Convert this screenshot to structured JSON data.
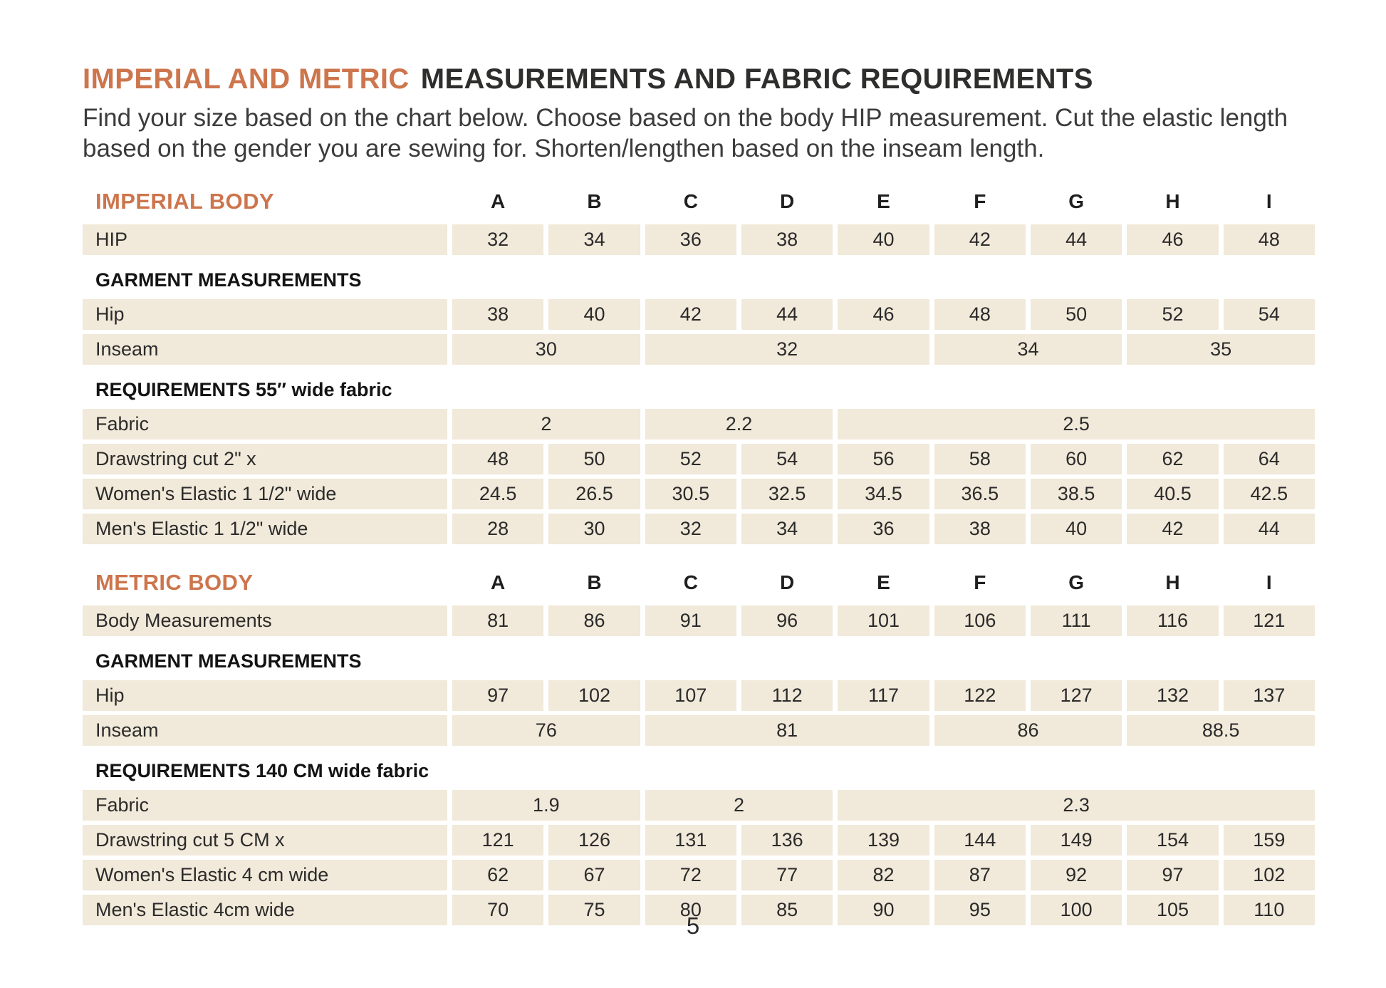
{
  "colors": {
    "accent": "#cd754d",
    "cell_bg": "#f1e9d9",
    "text": "#2b2b2b"
  },
  "page": {
    "title_accent": "IMPERIAL AND METRIC",
    "title_rest": "MEASUREMENTS AND FABRIC REQUIREMENTS",
    "subtitle_line1": "Find your size based on the chart below. Choose based on the body HIP measurement. Cut the elastic length",
    "subtitle_line2": "based on the gender you are sewing for. Shorten/lengthen based on the inseam length.",
    "page_number": "5"
  },
  "sizes": [
    "A",
    "B",
    "C",
    "D",
    "E",
    "F",
    "G",
    "H",
    "I"
  ],
  "imperial": {
    "heading": "IMPERIAL BODY",
    "hip_body": {
      "label": "HIP",
      "v": [
        "32",
        "34",
        "36",
        "38",
        "40",
        "42",
        "44",
        "46",
        "48"
      ]
    },
    "garment_heading": "GARMENT MEASUREMENTS",
    "hip": {
      "label": "Hip",
      "v": [
        "38",
        "40",
        "42",
        "44",
        "46",
        "48",
        "50",
        "52",
        "54"
      ]
    },
    "inseam": {
      "label": "Inseam",
      "v": [
        "30",
        "32",
        "34",
        "35"
      ]
    },
    "req_heading": "REQUIREMENTS 55″ wide fabric",
    "fabric": {
      "label": "Fabric",
      "v": [
        "2",
        "2.2",
        "2.5"
      ]
    },
    "drawstring": {
      "label": "Drawstring cut 2\" x",
      "v": [
        "48",
        "50",
        "52",
        "54",
        "56",
        "58",
        "60",
        "62",
        "64"
      ]
    },
    "womens": {
      "label": "Women's Elastic 1 1/2\" wide",
      "v": [
        "24.5",
        "26.5",
        "30.5",
        "32.5",
        "34.5",
        "36.5",
        "38.5",
        "40.5",
        "42.5"
      ]
    },
    "mens": {
      "label": "Men's Elastic 1 1/2\" wide",
      "v": [
        "28",
        "30",
        "32",
        "34",
        "36",
        "38",
        "40",
        "42",
        "44"
      ]
    }
  },
  "metric": {
    "heading": "METRIC BODY",
    "body_meas": {
      "label": "Body Measurements",
      "v": [
        "81",
        "86",
        "91",
        "96",
        "101",
        "106",
        "111",
        "116",
        "121"
      ]
    },
    "garment_heading": "GARMENT MEASUREMENTS",
    "hip": {
      "label": "Hip",
      "v": [
        "97",
        "102",
        "107",
        "112",
        "117",
        "122",
        "127",
        "132",
        "137"
      ]
    },
    "inseam": {
      "label": "Inseam",
      "v": [
        "76",
        "81",
        "86",
        "88.5"
      ]
    },
    "req_heading": "REQUIREMENTS 140 CM wide fabric",
    "fabric": {
      "label": "Fabric",
      "v": [
        "1.9",
        "2",
        "2.3"
      ]
    },
    "drawstring": {
      "label": "Drawstring cut 5 CM x",
      "v": [
        "121",
        "126",
        "131",
        "136",
        "139",
        "144",
        "149",
        "154",
        "159"
      ]
    },
    "womens": {
      "label": "Women's Elastic 4 cm wide",
      "v": [
        "62",
        "67",
        "72",
        "77",
        "82",
        "87",
        "92",
        "97",
        "102"
      ]
    },
    "mens": {
      "label": "Men's Elastic 4cm wide",
      "v": [
        "70",
        "75",
        "80",
        "85",
        "90",
        "95",
        "100",
        "105",
        "110"
      ]
    }
  }
}
